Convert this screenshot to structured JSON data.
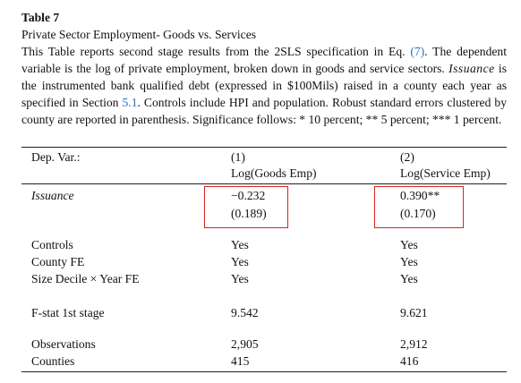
{
  "title": "Table 7",
  "subtitle": "Private Sector Employment- Goods vs. Services",
  "caption": [
    "This Table reports second stage results from the 2SLS specification in Eq. ",
    "(7)",
    ". The dependent variable is the log of private employment, broken down in goods and service sectors. ",
    "Issuance",
    " is the instrumented bank qualified debt (expressed in $100Mils) raised in a county each year as specified in Section ",
    "5.1",
    ". Controls include HPI and population. Robust standard errors clustered by county are reported in parenthesis. Significance follows: * 10 percent; ** 5 percent; *** 1 percent."
  ],
  "table": {
    "header": {
      "dep_var": "Dep. Var.:",
      "columns": [
        {
          "number": "(1)",
          "label": "Log(Goods Emp)"
        },
        {
          "number": "(2)",
          "label": "Log(Service Emp)"
        }
      ]
    },
    "issuance": {
      "label": "Issuance",
      "coefficients": [
        "−0.232",
        "0.390**"
      ],
      "standard_errors": [
        "(0.189)",
        "(0.170)"
      ]
    },
    "groups": [
      [
        [
          "Controls",
          "Yes",
          "Yes"
        ],
        [
          "County FE",
          "Yes",
          "Yes"
        ],
        [
          "Size Decile × Year FE",
          "Yes",
          "Yes"
        ]
      ],
      [
        [
          "F-stat 1st stage",
          "9.542",
          "9.621"
        ]
      ],
      [
        [
          "Observations",
          "2,905",
          "2,912"
        ],
        [
          "Counties",
          "415",
          "416"
        ]
      ]
    ]
  }
}
